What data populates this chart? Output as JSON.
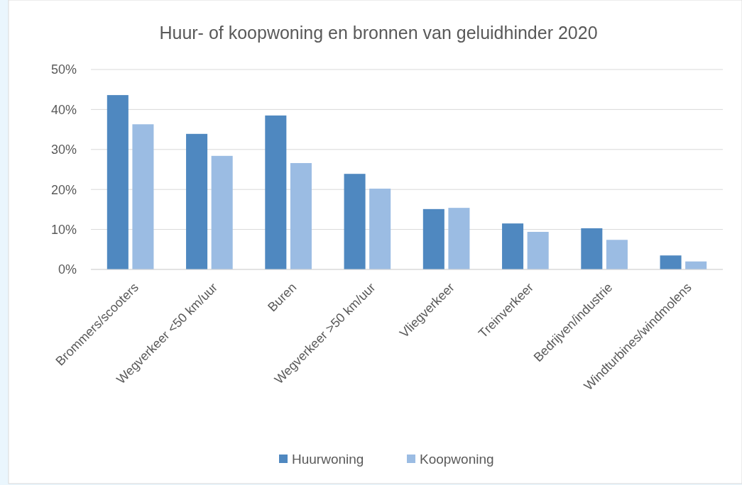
{
  "chart_data": {
    "type": "bar",
    "title": "Huur- of koopwoning en bronnen van geluidhinder 2020",
    "categories": [
      "Brommers/scooters",
      "Wegverkeer <50 km/uur",
      "Buren",
      "Wegverkeer >50 km/uur",
      "Vliegverkeer",
      "Treinverkeer",
      "Bedrijven/industrie",
      "Windturbines/windmolens"
    ],
    "series": [
      {
        "name": "Huurwoning",
        "color": "#4f88c0",
        "values": [
          43.6,
          33.9,
          38.5,
          23.9,
          15.1,
          11.5,
          10.3,
          3.5
        ]
      },
      {
        "name": "Koopwoning",
        "color": "#9bbce3",
        "values": [
          36.3,
          28.4,
          26.6,
          20.2,
          15.4,
          9.4,
          7.4,
          2.0
        ]
      }
    ],
    "ylim": [
      0,
      50
    ],
    "yticks": [
      {
        "value": 0,
        "label": "0%"
      },
      {
        "value": 10,
        "label": "10%"
      },
      {
        "value": 20,
        "label": "20%"
      },
      {
        "value": 30,
        "label": "30%"
      },
      {
        "value": 40,
        "label": "40%"
      },
      {
        "value": 50,
        "label": "50%"
      }
    ],
    "grid": "y",
    "legend": "bottom"
  }
}
